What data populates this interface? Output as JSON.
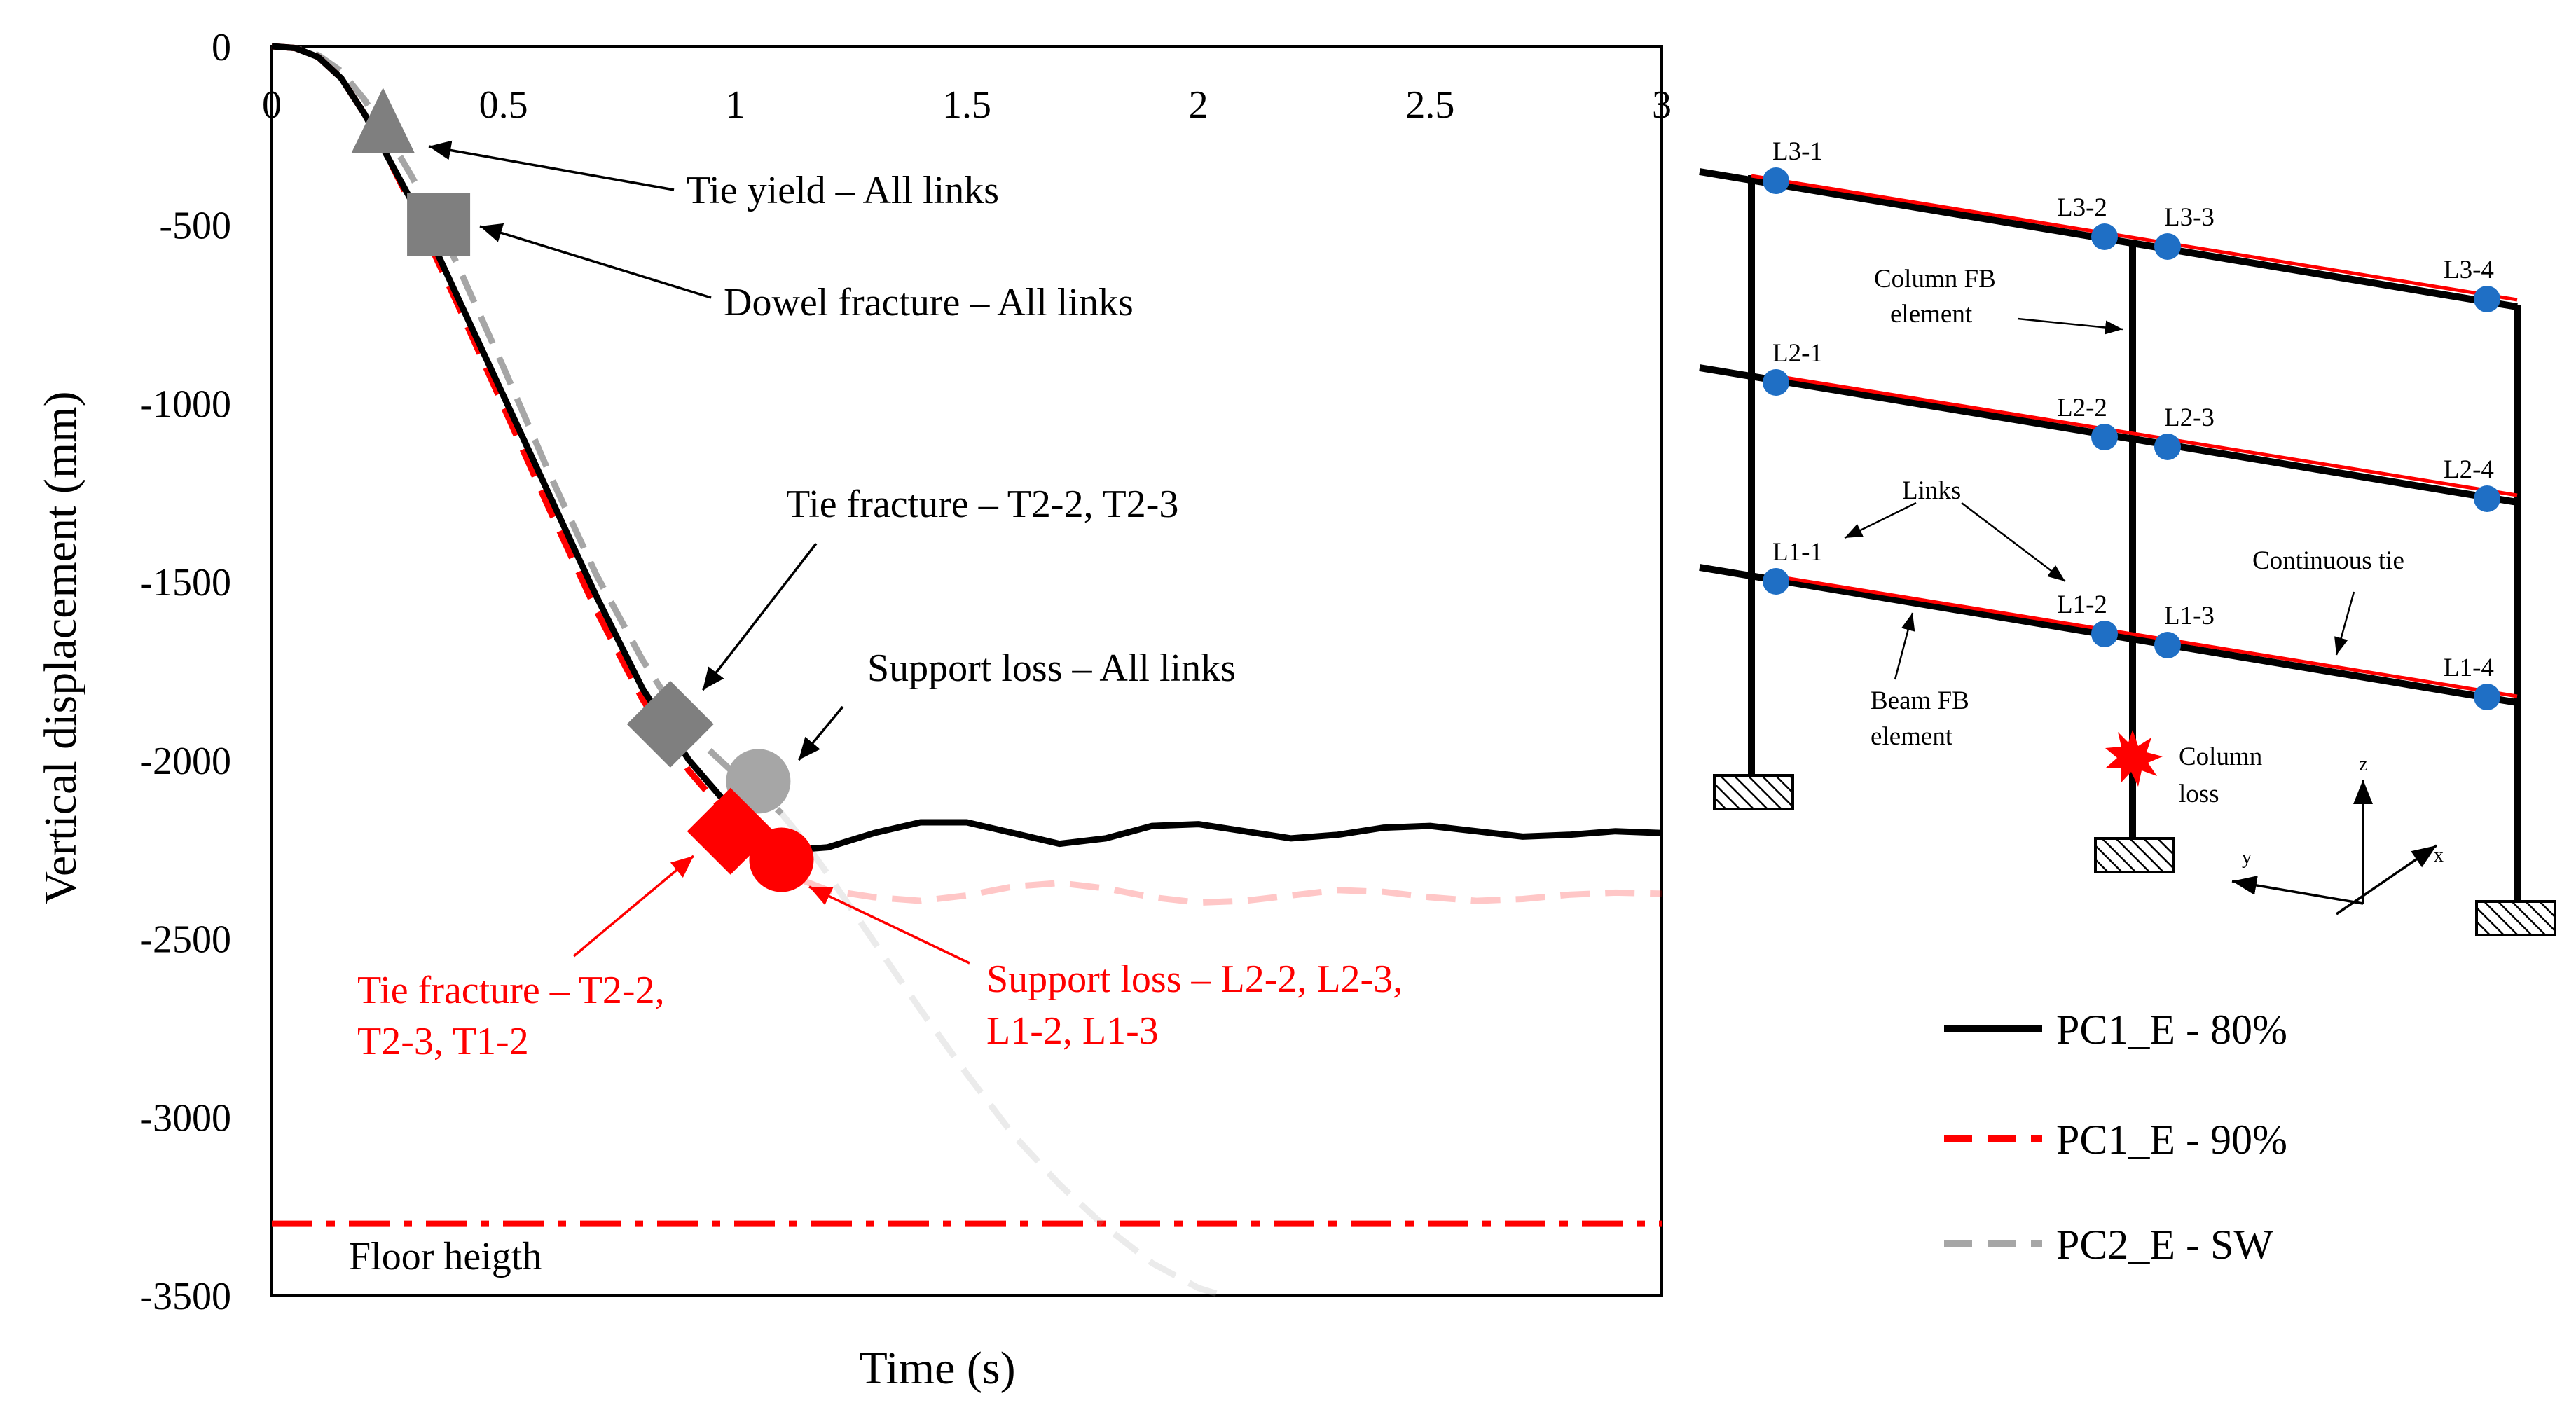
{
  "chart_data": {
    "type": "line",
    "xlabel": "Time (s)",
    "ylabel": "Vertical displacement (mm)",
    "xlim": [
      0,
      3
    ],
    "ylim": [
      -3500,
      0
    ],
    "x_ticks": [
      "0",
      "0.5",
      "1",
      "1.5",
      "2",
      "2.5",
      "3"
    ],
    "y_ticks": [
      "0",
      "-500",
      "-1000",
      "-1500",
      "-2000",
      "-2500",
      "-3000",
      "-3500"
    ],
    "series": [
      {
        "name": "PC1_E - 80%",
        "color": "#000000",
        "style": "solid",
        "x": [
          0,
          0.05,
          0.1,
          0.15,
          0.2,
          0.25,
          0.3,
          0.35,
          0.4,
          0.5,
          0.6,
          0.7,
          0.8,
          0.9,
          1.0,
          1.05,
          1.1,
          1.15,
          1.2,
          1.3,
          1.4,
          1.5,
          1.6,
          1.7,
          1.8,
          1.9,
          2.0,
          2.1,
          2.2,
          2.3,
          2.4,
          2.5,
          2.6,
          2.7,
          2.8,
          2.9,
          3.0
        ],
        "y": [
          0,
          -5,
          -30,
          -90,
          -190,
          -310,
          -430,
          -560,
          -700,
          -980,
          -1260,
          -1540,
          -1800,
          -2000,
          -2150,
          -2210,
          -2240,
          -2250,
          -2245,
          -2205,
          -2175,
          -2175,
          -2205,
          -2235,
          -2220,
          -2185,
          -2180,
          -2200,
          -2220,
          -2210,
          -2190,
          -2185,
          -2200,
          -2215,
          -2210,
          -2200,
          -2205
        ]
      },
      {
        "name": "PC1_E - 90%",
        "color": "#ff0000",
        "style": "dashed",
        "x": [
          0,
          0.05,
          0.1,
          0.15,
          0.2,
          0.25,
          0.3,
          0.35,
          0.4,
          0.5,
          0.6,
          0.7,
          0.8,
          0.9,
          1.0,
          1.05,
          1.1,
          1.15,
          1.2,
          1.3,
          1.4,
          1.5,
          1.6,
          1.7,
          1.8,
          1.9,
          2.0,
          2.1,
          2.2,
          2.3,
          2.4,
          2.5,
          2.6,
          2.7,
          2.8,
          2.9,
          3.0
        ],
        "y": [
          0,
          -5,
          -30,
          -90,
          -190,
          -310,
          -440,
          -580,
          -720,
          -1010,
          -1300,
          -1580,
          -1830,
          -2030,
          -2180,
          -2250,
          -2300,
          -2340,
          -2365,
          -2385,
          -2395,
          -2380,
          -2355,
          -2345,
          -2360,
          -2385,
          -2400,
          -2395,
          -2380,
          -2365,
          -2370,
          -2385,
          -2395,
          -2390,
          -2378,
          -2372,
          -2375
        ]
      },
      {
        "name": "PC2_E - SW",
        "color": "#a6a6a6",
        "style": "dashed",
        "x": [
          0,
          0.05,
          0.1,
          0.15,
          0.2,
          0.25,
          0.3,
          0.35,
          0.4,
          0.5,
          0.6,
          0.7,
          0.8,
          0.9,
          1.0,
          1.05,
          1.1,
          1.15,
          1.2,
          1.3,
          1.4,
          1.5,
          1.6,
          1.7,
          1.8,
          1.9,
          2.0,
          2.05
        ],
        "y": [
          0,
          -5,
          -25,
          -70,
          -150,
          -250,
          -360,
          -480,
          -610,
          -900,
          -1200,
          -1480,
          -1720,
          -1920,
          -2040,
          -2090,
          -2150,
          -2230,
          -2320,
          -2510,
          -2700,
          -2880,
          -3050,
          -3190,
          -3310,
          -3410,
          -3480,
          -3500
        ]
      }
    ],
    "reference_line": {
      "label": "Floor heigth",
      "y": -3300,
      "color": "#ff0000",
      "style": "dash-dot"
    },
    "markers": [
      {
        "shape": "triangle",
        "x": 0.24,
        "y": -230,
        "color": "#7f7f7f",
        "label": "Tie yield – All links",
        "label_color": "#000000"
      },
      {
        "shape": "square",
        "x": 0.36,
        "y": -500,
        "color": "#7f7f7f",
        "label": "Dowel fracture – All links",
        "label_color": "#000000"
      },
      {
        "shape": "diamond",
        "x": 0.86,
        "y": -1900,
        "color": "#7f7f7f",
        "label": "Tie fracture – T2-2, T2-3",
        "label_color": "#000000"
      },
      {
        "shape": "circle",
        "x": 1.05,
        "y": -2060,
        "color": "#a6a6a6",
        "label": "Support loss – All links",
        "label_color": "#000000"
      },
      {
        "shape": "diamond",
        "x": 0.99,
        "y": -2200,
        "color": "#ff0000",
        "label": "Tie fracture – T2-2, T2-3, T1-2",
        "label_color": "#ff0000"
      },
      {
        "shape": "circle",
        "x": 1.1,
        "y": -2280,
        "color": "#ff0000",
        "label": "Support loss – L2-2, L2-3, L1-2, L1-3",
        "label_color": "#ff0000"
      }
    ],
    "legend": {
      "placement": "bottom-right",
      "entries": [
        "PC1_E - 80%",
        "PC1_E - 90%",
        "PC2_E - SW"
      ]
    }
  },
  "annotations": {
    "tie_yield": "Tie yield – All links",
    "dowel_fracture": "Dowel fracture – All links",
    "tie_fracture_gray": "Tie fracture – T2-2, T2-3",
    "support_loss_gray": "Support loss – All links",
    "tie_fracture_red_1": "Tie fracture – T2-2,",
    "tie_fracture_red_2": "T2-3, T1-2",
    "support_loss_red_1": "Support loss – L2-2, L2-3,",
    "support_loss_red_2": "L1-2, L1-3",
    "floor": "Floor heigth"
  },
  "diagram": {
    "links": [
      "L3-1",
      "L3-2",
      "L3-3",
      "L3-4",
      "L2-1",
      "L2-2",
      "L2-3",
      "L2-4",
      "L1-1",
      "L1-2",
      "L1-3",
      "L1-4"
    ],
    "link_color": "#1f6fc5",
    "tie_color": "#ff0000",
    "beam_color": "#000000",
    "column_fb_1": "Column FB",
    "column_fb_2": "element",
    "links_label": "Links",
    "continuous_tie": "Continuous tie",
    "beam_fb_1": "Beam FB",
    "beam_fb_2": "element",
    "column_loss_1": "Column",
    "column_loss_2": "loss",
    "axis_z": "z",
    "axis_y": "y",
    "axis_x": "x"
  }
}
